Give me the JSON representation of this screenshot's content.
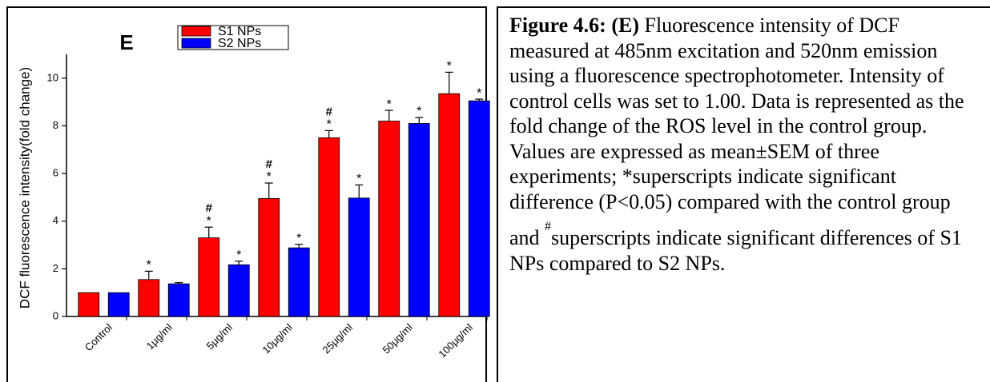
{
  "chart_data": {
    "type": "bar",
    "title": "E",
    "ylabel": "DCF fluorescence intensity(fold change)",
    "categories": [
      "Control",
      "1μg/ml",
      "5μg/ml",
      "10μg/ml",
      "25μg/ml",
      "50μg/ml",
      "100μg/ml"
    ],
    "series": [
      {
        "name": "S1 NPs",
        "color": "#ff0000",
        "values": [
          1,
          1.55,
          3.3,
          4.95,
          7.5,
          8.2,
          9.35
        ],
        "errors": [
          0,
          0.35,
          0.45,
          0.65,
          0.3,
          0.45,
          0.9
        ],
        "star_labels": [
          null,
          "*",
          "*",
          "*",
          "*",
          "*",
          "*"
        ],
        "hash_labels": [
          null,
          null,
          "#",
          "#",
          "#",
          null,
          null
        ]
      },
      {
        "name": "S2 NPs",
        "color": "#0000ff",
        "values": [
          1,
          1.37,
          2.17,
          2.88,
          4.97,
          8.1,
          9.05
        ],
        "errors": [
          0,
          0.05,
          0.15,
          0.15,
          0.55,
          0.25,
          0.07
        ],
        "star_labels": [
          null,
          null,
          "*",
          "*",
          "*",
          "*",
          "*"
        ],
        "hash_labels": [
          null,
          null,
          null,
          null,
          null,
          null,
          null
        ]
      }
    ],
    "ylim": [
      0,
      11
    ],
    "yticks": [
      0,
      2,
      4,
      6,
      8,
      10
    ]
  },
  "caption": {
    "label": "Figure 4.6: (E)",
    "text_before": " Fluorescence intensity of DCF measured at 485nm excitation and 520nm emission using a fluorescence spectrophotometer. Intensity of control cells was set to 1.00. Data is represented as the fold change of the ROS level in the control group. Values are expressed as mean±SEM of three experiments; *superscripts indicate significant difference (P<0.05) compared with the control group and ",
    "superscript": "#",
    "text_after": "superscripts indicate significant differences of S1 NPs compared to S2 NPs."
  }
}
